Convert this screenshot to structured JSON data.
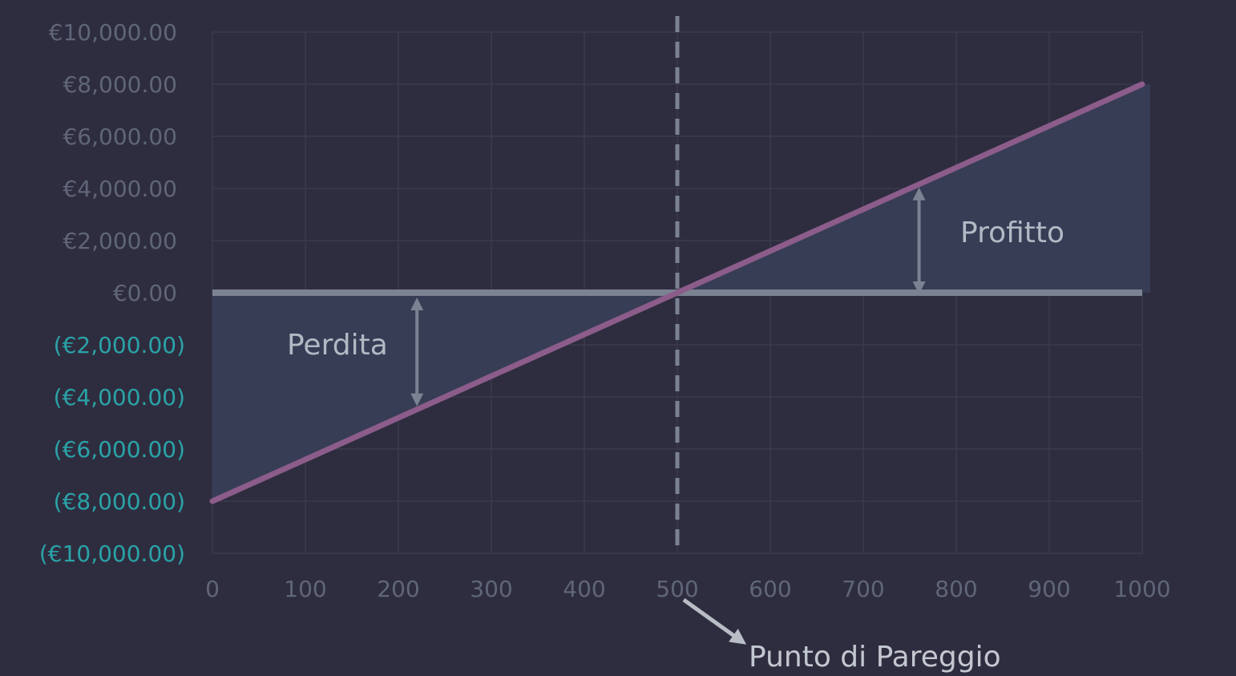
{
  "chart_data": {
    "type": "line",
    "title": "",
    "xlabel": "",
    "ylabel": "",
    "xlim": [
      0,
      1000
    ],
    "ylim": [
      -10000,
      10000
    ],
    "x_ticks": [
      0,
      100,
      200,
      300,
      400,
      500,
      600,
      700,
      800,
      900,
      1000
    ],
    "x_tick_labels": [
      "0",
      "100",
      "200",
      "300",
      "400",
      "500",
      "600",
      "700",
      "800",
      "900",
      "1000"
    ],
    "y_ticks": [
      10000,
      8000,
      6000,
      4000,
      2000,
      0,
      -2000,
      -4000,
      -6000,
      -8000,
      -10000
    ],
    "y_tick_labels": [
      "€10,000.00",
      "€8,000.00",
      "€6,000.00",
      "€4,000.00",
      "€2,000.00",
      "€0.00",
      "(€2,000.00)",
      "(€4,000.00)",
      "(€6,000.00)",
      "(€8,000.00)",
      "(€10,000.00)"
    ],
    "series": [
      {
        "values_x": [
          0,
          1000
        ],
        "values_y": [
          -8000,
          8000
        ],
        "color": "#8c5c8a"
      }
    ],
    "break_even_x": 500,
    "annotations": {
      "loss_label": "Perdita",
      "loss_arrow_x": 220,
      "profit_label": "Profitto",
      "profit_arrow_x": 760,
      "break_even_label": "Punto di Pareggio"
    },
    "grid": true,
    "colors": {
      "background": "#2e2d3f",
      "area_fill": "#363d55",
      "grid": "#3b3a4d",
      "zero_line": "#7b8392",
      "break_even_line": "#7b8392",
      "arrow": "#7b8392",
      "callout_arrow": "#b9bec6",
      "positive_tick": "#5f6677",
      "negative_tick": "#2aa3a8"
    }
  }
}
